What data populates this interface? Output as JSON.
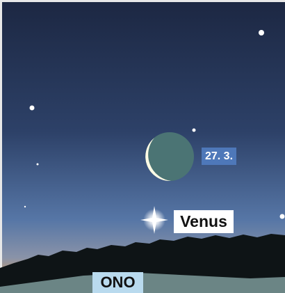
{
  "labels": {
    "moon_date": "27. 3.",
    "planet": "Venus",
    "direction": "ONO"
  }
}
